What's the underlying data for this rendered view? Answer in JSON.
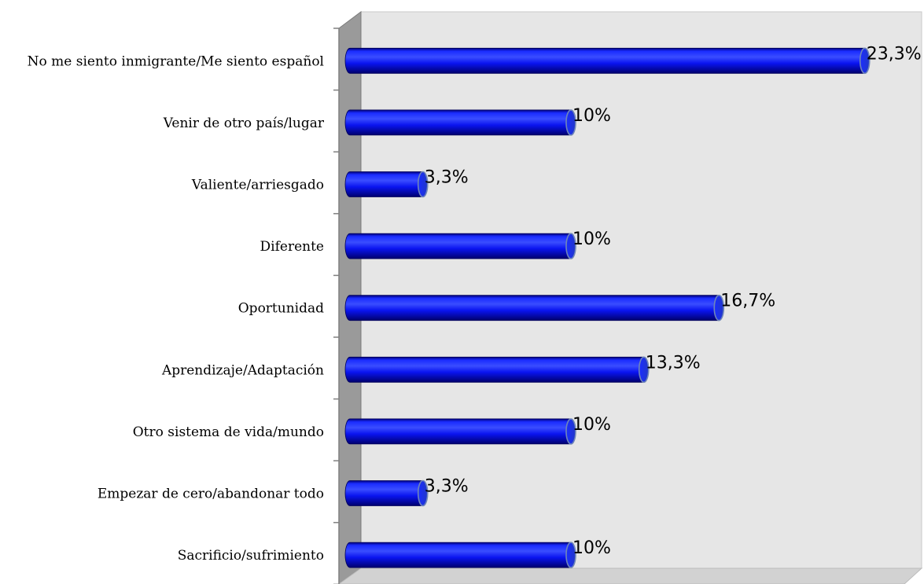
{
  "chart_data": {
    "type": "bar",
    "orientation": "horizontal",
    "style": "3d-cylinder",
    "categories": [
      "No me siento inmigrante/Me siento español",
      "Venir de otro país/lugar",
      "Valiente/arriesgado",
      "Diferente",
      "Oportunidad",
      "Aprendizaje/Adaptación",
      "Otro sistema de vida/mundo",
      "Empezar de cero/abandonar todo",
      "Sacrificio/sufrimiento"
    ],
    "values": [
      23.3,
      10,
      3.3,
      10,
      16.7,
      13.3,
      10,
      3.3,
      10
    ],
    "value_labels": [
      "23,3%",
      "10%",
      "3,3%",
      "10%",
      "16,7%",
      "13,3%",
      "10%",
      "3,3%",
      "10%"
    ],
    "title": "",
    "xlabel": "",
    "ylabel": "",
    "xlim": [
      0,
      25
    ],
    "grid": false,
    "legend": "none",
    "colors": {
      "bar": "#0a14f0",
      "bar_dark": "#00008a",
      "bar_light": "#4a5cff",
      "plot_wall": "#e6e6e6",
      "side_wall": "#999999",
      "axis": "#808080"
    }
  }
}
